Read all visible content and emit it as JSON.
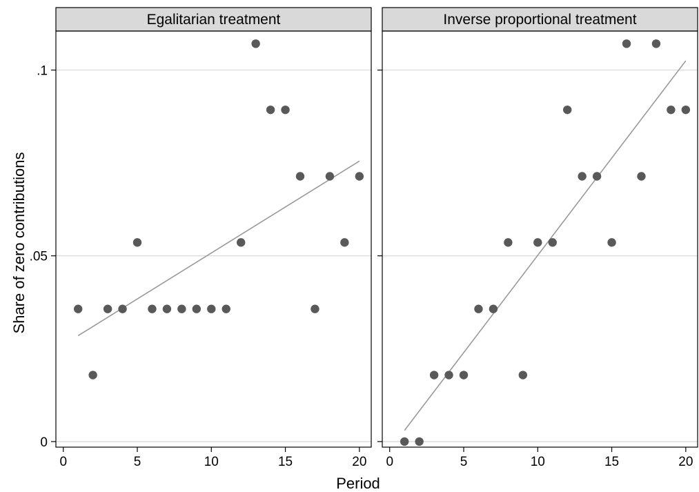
{
  "chart_data": {
    "type": "scatter",
    "xlabel": "Period",
    "ylabel": "Share of zero contributions",
    "xlim": [
      -0.5,
      20.8
    ],
    "ylim": [
      -0.0015,
      0.1105
    ],
    "x_ticks": [
      0,
      5,
      10,
      15,
      20
    ],
    "x_tick_labels": [
      "0",
      "5",
      "10",
      "15",
      "20"
    ],
    "y_ticks": [
      0,
      0.05,
      0.1
    ],
    "y_tick_labels": [
      "0",
      ".05",
      ".1"
    ],
    "grid": "horizontal",
    "colors": {
      "point": "#595959",
      "fit_line": "#999999",
      "header_fill": "#d9d9d9",
      "grid": "#d9d9d9"
    },
    "panels": [
      {
        "title": "Egalitarian treatment",
        "points": {
          "x": [
            1,
            2,
            3,
            4,
            5,
            6,
            7,
            8,
            9,
            10,
            11,
            12,
            13,
            14,
            15,
            16,
            17,
            18,
            19,
            20
          ],
          "y": [
            0.0357,
            0.0179,
            0.0357,
            0.0357,
            0.0536,
            0.0357,
            0.0357,
            0.0357,
            0.0357,
            0.0357,
            0.0357,
            0.0536,
            0.1071,
            0.0893,
            0.0893,
            0.0714,
            0.0357,
            0.0714,
            0.0536,
            0.0714
          ]
        },
        "fit_line": {
          "x": [
            1,
            20
          ],
          "y": [
            0.0285,
            0.0755
          ]
        }
      },
      {
        "title": "Inverse proportional treatment",
        "points": {
          "x": [
            1,
            2,
            3,
            4,
            5,
            6,
            7,
            8,
            9,
            10,
            11,
            12,
            13,
            14,
            15,
            16,
            17,
            18,
            19,
            20
          ],
          "y": [
            0,
            0,
            0.0179,
            0.0179,
            0.0179,
            0.0357,
            0.0357,
            0.0536,
            0.0179,
            0.0536,
            0.0536,
            0.0893,
            0.0714,
            0.0714,
            0.0536,
            0.1071,
            0.0714,
            0.1071,
            0.0893,
            0.0893
          ]
        },
        "fit_line": {
          "x": [
            1,
            20
          ],
          "y": [
            0.003,
            0.1025
          ]
        }
      }
    ]
  }
}
